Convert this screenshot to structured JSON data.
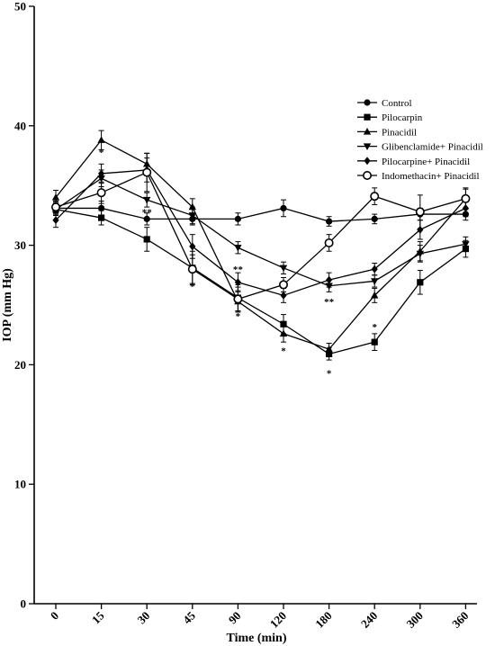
{
  "chart_data": {
    "type": "line",
    "xlabel": "Time (min)",
    "ylabel": "IOP (mm Hg)",
    "ylim": [
      0,
      50
    ],
    "yticks": [
      0,
      10,
      20,
      30,
      40,
      50
    ],
    "categories": [
      "0",
      "15",
      "30",
      "45",
      "90",
      "120",
      "180",
      "240",
      "300",
      "360"
    ],
    "legend_position": "right",
    "series": [
      {
        "name": "Control",
        "marker": "circle",
        "values": [
          33.1,
          33.1,
          32.2,
          32.2,
          32.2,
          33.1,
          32.0,
          32.2,
          32.6,
          32.6
        ],
        "errors": [
          0.5,
          0.6,
          0.5,
          0.5,
          0.5,
          0.7,
          0.4,
          0.4,
          0.5,
          0.5
        ]
      },
      {
        "name": "Pilocarpin",
        "marker": "square",
        "values": [
          33.0,
          32.3,
          30.5,
          28.1,
          25.6,
          23.4,
          20.9,
          21.9,
          26.9,
          29.7
        ],
        "errors": [
          0.5,
          0.6,
          1.0,
          1.4,
          1.1,
          0.8,
          0.5,
          0.7,
          1.0,
          0.7
        ]
      },
      {
        "name": "Pinacidil",
        "marker": "triangle-up",
        "values": [
          34.0,
          38.8,
          36.8,
          33.2,
          25.3,
          22.6,
          21.3,
          25.8,
          29.5,
          33.9
        ],
        "errors": [
          0.6,
          0.8,
          0.9,
          0.7,
          0.9,
          0.7,
          0.5,
          0.6,
          0.8,
          0.8
        ]
      },
      {
        "name": "Glibenclamide+ Pinacidil",
        "marker": "triangle-down",
        "values": [
          33.0,
          35.6,
          33.8,
          32.5,
          29.8,
          28.1,
          26.6,
          27.0,
          29.3,
          30.1
        ],
        "errors": [
          0.5,
          0.7,
          0.6,
          0.7,
          0.5,
          0.5,
          0.5,
          0.5,
          0.7,
          0.6
        ]
      },
      {
        "name": "Pilocarpine+ Pinacidil",
        "marker": "diamond",
        "values": [
          32.1,
          36.0,
          36.3,
          29.9,
          26.9,
          25.8,
          27.1,
          28.0,
          31.3,
          33.1
        ],
        "errors": [
          0.6,
          0.8,
          1.0,
          1.0,
          0.8,
          0.6,
          0.6,
          0.5,
          0.8,
          0.7
        ]
      },
      {
        "name": "Indomethacin+ Pinacidil",
        "marker": "circle-open",
        "values": [
          33.2,
          34.4,
          36.1,
          28.0,
          25.5,
          26.7,
          30.2,
          34.1,
          32.8,
          33.9
        ],
        "errors": [
          0.5,
          0.9,
          1.6,
          1.2,
          1.0,
          0.6,
          0.7,
          0.7,
          1.4,
          0.9
        ]
      }
    ],
    "annotations": [
      {
        "text": "*",
        "x": "15",
        "y": 37.8
      },
      {
        "text": "*",
        "x": "15",
        "y": 35.7
      },
      {
        "text": "**",
        "x": "30",
        "y": 32.8
      },
      {
        "text": "*",
        "x": "45",
        "y": 26.6
      },
      {
        "text": "**",
        "x": "90",
        "y": 28.0
      },
      {
        "text": "*",
        "x": "90",
        "y": 24.1
      },
      {
        "text": "*",
        "x": "120",
        "y": 21.2
      },
      {
        "text": "**",
        "x": "180",
        "y": 25.3
      },
      {
        "text": "*",
        "x": "180",
        "y": 19.3
      },
      {
        "text": "*",
        "x": "240",
        "y": 23.2
      }
    ]
  }
}
